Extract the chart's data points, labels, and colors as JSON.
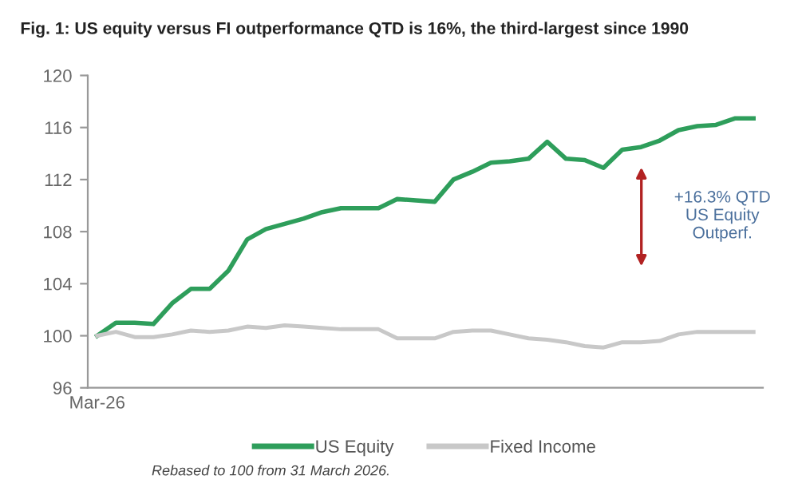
{
  "chart_data": {
    "type": "line",
    "title": "Fig. 1: US equity versus FI outperformance QTD is 16%, the third-largest since 1990",
    "categories": [
      "Mar-26",
      null,
      null,
      null,
      null,
      null,
      null,
      null,
      null,
      null,
      null,
      null,
      null,
      null,
      null,
      null,
      null,
      null,
      null,
      null,
      null,
      null,
      null,
      null,
      null,
      null,
      null,
      null,
      null,
      null,
      null,
      null,
      null,
      null,
      null,
      null
    ],
    "series": [
      {
        "name": "US Equity",
        "color": "#2e9e5b",
        "values": [
          100.0,
          101.0,
          101.0,
          100.9,
          102.5,
          103.6,
          103.6,
          105.0,
          107.4,
          108.2,
          108.6,
          109.0,
          109.5,
          109.8,
          109.8,
          109.8,
          110.5,
          110.4,
          110.3,
          112.0,
          112.6,
          113.3,
          113.4,
          113.6,
          114.9,
          113.6,
          113.5,
          112.9,
          114.3,
          114.5,
          115.0,
          115.8,
          116.1,
          116.2,
          116.7,
          116.7
        ]
      },
      {
        "name": "Fixed Income",
        "color": "#c8c8c8",
        "values": [
          100.0,
          100.3,
          99.9,
          99.9,
          100.1,
          100.4,
          100.3,
          100.4,
          100.7,
          100.6,
          100.8,
          100.7,
          100.6,
          100.5,
          100.5,
          100.5,
          99.8,
          99.8,
          99.8,
          100.3,
          100.4,
          100.4,
          100.1,
          99.8,
          99.7,
          99.5,
          99.2,
          99.1,
          99.5,
          99.5,
          99.6,
          100.1,
          100.3,
          100.3,
          100.3,
          100.3
        ]
      }
    ],
    "ylim": [
      96,
      120
    ],
    "yticks": [
      96,
      100,
      104,
      108,
      112,
      116,
      120
    ],
    "grid": false,
    "legend": "bottom",
    "marker": "none",
    "line_style": "solid",
    "annotations": [
      "+16.3% QTD\nUS Equity\nOutperf.",
      "Rebased to 100 from 31 March 2026."
    ]
  }
}
